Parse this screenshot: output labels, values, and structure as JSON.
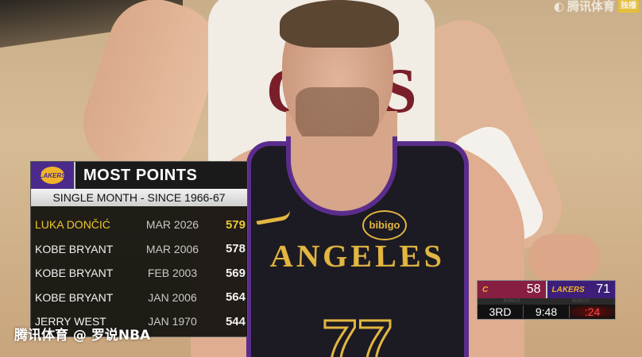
{
  "watermarks": {
    "top": "腾讯体育",
    "top_tag": "独播",
    "bottom": "腾讯体育 @ 罗说NBA"
  },
  "jersey": {
    "sponsor": "bibigo",
    "city": "ANGELES",
    "number": "77"
  },
  "stats_card": {
    "logo": "LAKERS",
    "title": "MOST POINTS",
    "subtitle": "SINGLE MONTH - SINCE 1966-67",
    "highlight_color": "#ecc832",
    "rows": [
      {
        "name": "LUKA DONČIĆ",
        "date": "MAR 2026",
        "points": "579"
      },
      {
        "name": "KOBE BRYANT",
        "date": "MAR 2006",
        "points": "578"
      },
      {
        "name": "KOBE BRYANT",
        "date": "FEB 2003",
        "points": "569"
      },
      {
        "name": "KOBE BRYANT",
        "date": "JAN 2006",
        "points": "564"
      },
      {
        "name": "JERRY WEST",
        "date": "JAN 1970",
        "points": "544"
      }
    ]
  },
  "scorebug": {
    "home": {
      "team": "Cavaliers",
      "logo": "C",
      "score": "58",
      "color": "#861f41"
    },
    "away": {
      "team": "Lakers",
      "logo": "LAKERS",
      "score": "71",
      "color": "#3d1f7a"
    },
    "bonus_label": "BONUS",
    "period": "3RD",
    "clock": "9:48",
    "shot_clock": ":24"
  }
}
